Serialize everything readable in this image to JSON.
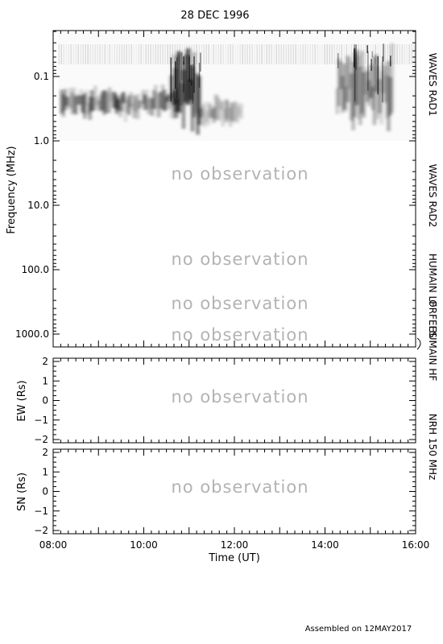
{
  "title": "28 DEC 1996",
  "footer": "Assembled on 12MAY2017",
  "no_observation_text": "no observation",
  "colors": {
    "text": "#000000",
    "no_observation": "#b3b3b3",
    "spectrum": "#000000"
  },
  "chart_data": [
    {
      "type": "heatmap",
      "name": "dynamic-spectrum",
      "ylabel": "Frequency (MHz)",
      "y_scale": "log",
      "y_inverted": true,
      "ylim": [
        0.02,
        1500
      ],
      "yticks": [
        "0.1",
        "1.0",
        "10.0",
        "100.0",
        "1000.0"
      ],
      "xlim": [
        "08:00",
        "16:00"
      ],
      "right_labels": [
        "WAVES RAD1",
        "WAVES RAD2",
        "HUMAIN LF",
        "ORFEES",
        "HUMAIN HF"
      ],
      "no_observation_bands": [
        "WAVES RAD2",
        "HUMAIN LF",
        "ORFEES",
        "HUMAIN HF"
      ],
      "observed_band": {
        "instrument": "WAVES RAD1",
        "freq_range_mhz": [
          0.02,
          1.0
        ],
        "time_range": [
          "08:07",
          "16:00"
        ],
        "features": [
          {
            "kind": "continuum",
            "time_start": "08:10",
            "time_end": "10:45",
            "freq_low_mhz": 0.15,
            "freq_high_mhz": 0.45,
            "intensity": 0.8
          },
          {
            "kind": "burst",
            "time_start": "10:35",
            "time_end": "11:15",
            "freq_low_mhz": 0.04,
            "freq_high_mhz": 0.7,
            "intensity": 0.9
          },
          {
            "kind": "continuum",
            "time_start": "11:15",
            "time_end": "12:10",
            "freq_low_mhz": 0.2,
            "freq_high_mhz": 0.6,
            "intensity": 0.6
          },
          {
            "kind": "burst",
            "time_start": "14:15",
            "time_end": "15:30",
            "freq_low_mhz": 0.03,
            "freq_high_mhz": 0.6,
            "intensity": 0.7
          }
        ]
      }
    },
    {
      "type": "scatter",
      "name": "nrh-ew",
      "ylabel": "EW (Rs)",
      "ylim": [
        -2,
        2
      ],
      "yticks": [
        2,
        1,
        0,
        -1,
        -2
      ],
      "xlim": [
        "08:00",
        "16:00"
      ],
      "no_observation": true
    },
    {
      "type": "scatter",
      "name": "nrh-sn",
      "ylabel": "SN (Rs)",
      "ylim": [
        -2,
        2
      ],
      "yticks": [
        2,
        1,
        0,
        -1,
        -2
      ],
      "xlim": [
        "08:00",
        "16:00"
      ],
      "xlabel": "Time (UT)",
      "xticks": [
        "08:00",
        "10:00",
        "12:00",
        "14:00",
        "16:00"
      ],
      "no_observation": true
    }
  ],
  "nrh_right_label": "NRH 150 MHz"
}
